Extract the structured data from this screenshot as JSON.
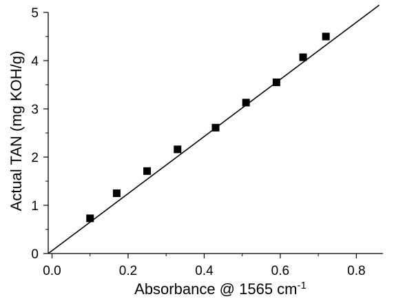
{
  "chart_data": {
    "type": "scatter",
    "title": "",
    "xlabel": "Absorbance @ 1565 cm",
    "xlabel_superscript": "-1",
    "ylabel": "Actual TAN (mg KOH/g)",
    "xlim": [
      -0.01,
      0.87
    ],
    "ylim": [
      0,
      5
    ],
    "x_ticks": [
      0.0,
      0.2,
      0.4,
      0.6,
      0.8
    ],
    "x_tick_labels": [
      "0.0",
      "0.2",
      "0.4",
      "0.6",
      "0.8"
    ],
    "y_ticks": [
      0,
      1,
      2,
      3,
      4,
      5
    ],
    "y_tick_labels": [
      "0",
      "1",
      "2",
      "3",
      "4",
      "5"
    ],
    "grid": false,
    "series": [
      {
        "marker": "square",
        "color": "#000000",
        "x": [
          0.1,
          0.17,
          0.25,
          0.33,
          0.43,
          0.51,
          0.59,
          0.66,
          0.72
        ],
        "y": [
          0.73,
          1.25,
          1.71,
          2.16,
          2.61,
          3.13,
          3.55,
          4.07,
          4.5
        ]
      }
    ],
    "fit_line": {
      "color": "#000000",
      "x": [
        -0.01,
        0.86
      ],
      "y": [
        0.0,
        5.15
      ]
    }
  }
}
